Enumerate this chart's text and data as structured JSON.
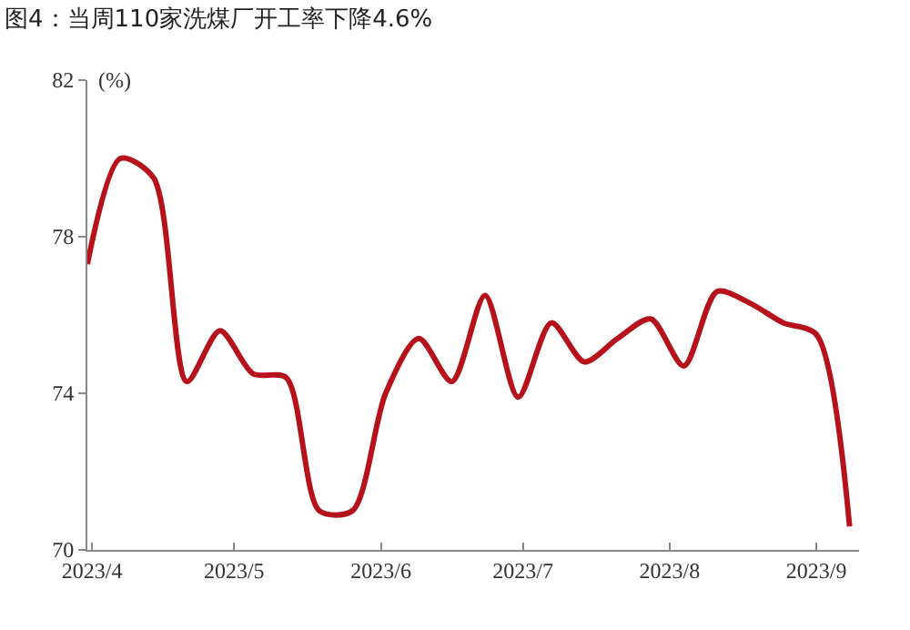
{
  "chart_data": {
    "type": "line",
    "title": "图4：当周110家洗煤厂开工率下降4.6%",
    "ylabel": "(%)",
    "x": [
      "2023-03-31",
      "2023-04-07",
      "2023-04-14",
      "2023-04-21",
      "2023-04-28",
      "2023-05-05",
      "2023-05-12",
      "2023-05-19",
      "2023-05-26",
      "2023-06-02",
      "2023-06-09",
      "2023-06-16",
      "2023-06-23",
      "2023-06-30",
      "2023-07-07",
      "2023-07-14",
      "2023-07-21",
      "2023-07-28",
      "2023-08-04",
      "2023-08-11",
      "2023-08-18",
      "2023-08-25",
      "2023-09-01",
      "2023-09-08"
    ],
    "series": [
      {
        "color": "#b5121b",
        "values": [
          77.3,
          80.0,
          79.5,
          74.3,
          75.6,
          74.5,
          74.4,
          71.0,
          71.0,
          74.0,
          75.4,
          74.3,
          76.5,
          73.9,
          75.8,
          74.8,
          75.4,
          75.9,
          74.7,
          76.6,
          76.3,
          75.8,
          75.5,
          70.6
        ]
      }
    ],
    "xlim": [
      "2023-03-31",
      "2023-09-10"
    ],
    "xticks": [
      {
        "value": "2023-04-01",
        "label": "2023/4"
      },
      {
        "value": "2023-05-01",
        "label": "2023/5"
      },
      {
        "value": "2023-06-01",
        "label": "2023/6"
      },
      {
        "value": "2023-07-01",
        "label": "2023/7"
      },
      {
        "value": "2023-08-01",
        "label": "2023/8"
      },
      {
        "value": "2023-09-01",
        "label": "2023/9"
      }
    ],
    "ylim": [
      70,
      82
    ],
    "yticks": [
      70,
      74,
      78,
      82
    ],
    "marker": "none",
    "line_style": "solid"
  }
}
